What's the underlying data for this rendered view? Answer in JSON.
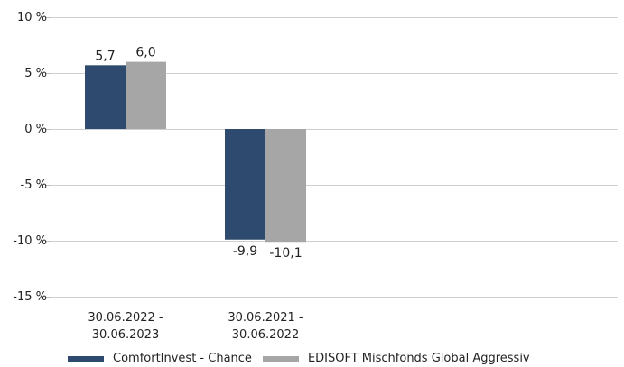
{
  "chart_data": {
    "type": "bar",
    "categories": [
      [
        "30.06.2022 -",
        "30.06.2023"
      ],
      [
        "30.06.2021 -",
        "30.06.2022"
      ]
    ],
    "series": [
      {
        "name": "ComfortInvest - Chance",
        "color": "#2e4a6e",
        "values": [
          5.7,
          -9.9
        ],
        "labels": [
          "5,7",
          "-9,9"
        ]
      },
      {
        "name": "EDISOFT Mischfonds Global Aggressiv",
        "color": "#a6a6a6",
        "values": [
          6.0,
          -10.1
        ],
        "labels": [
          "6,0",
          "-10,1"
        ]
      }
    ],
    "ylim": [
      -15,
      10
    ],
    "yticks": [
      10,
      5,
      0,
      -5,
      -10,
      -15
    ],
    "ytick_labels": [
      "10 %",
      "5 %",
      "0 %",
      "-5 %",
      "-10 %",
      "-15 %"
    ],
    "grid": true,
    "legend_position": "bottom-left",
    "title": "",
    "xlabel": "",
    "ylabel": ""
  }
}
